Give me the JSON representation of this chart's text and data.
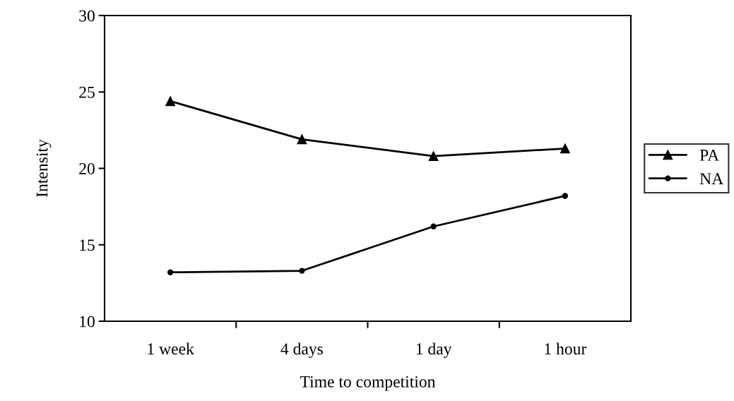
{
  "chart_data": {
    "type": "line",
    "xlabel": "Time to competition",
    "ylabel": "Intensity",
    "categories": [
      "1 week",
      "4 days",
      "1 day",
      "1 hour"
    ],
    "series": [
      {
        "name": "PA",
        "color": "#000000",
        "values": [
          24.4,
          21.9,
          20.8,
          21.3
        ],
        "marker": "triangle"
      },
      {
        "name": "NA",
        "color": "#000000",
        "values": [
          13.2,
          13.3,
          16.2,
          18.2
        ],
        "marker": "circle"
      }
    ],
    "ylim": [
      10,
      30
    ],
    "yticks": [
      10,
      15,
      20,
      25,
      30
    ],
    "grid": false,
    "legend": "right",
    "line_style": "solid"
  }
}
